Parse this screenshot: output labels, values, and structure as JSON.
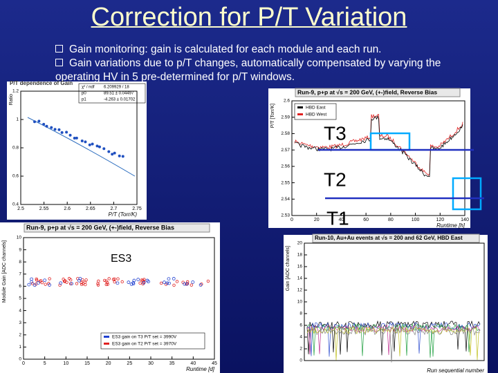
{
  "title": "Correction for P/T Variation",
  "bullets": [
    "Gain monitoring: gain is calculated for each module and each run.",
    "Gain variations due to p/T changes, automatically compensated  by varying the operating HV in 5 pre-determined for p/T windows."
  ],
  "panels": [
    {
      "title": "P/T dependence of Gain",
      "x_label": "P/T (Torr/K)",
      "y_label": "Ratio",
      "xticks": [
        "2.5",
        "2.55",
        "2.6",
        "2.65",
        "2.7",
        "2.75"
      ],
      "yticks": [
        "0.4",
        "0.6",
        "0.8",
        "1",
        "1.2"
      ],
      "stats": [
        [
          "χ² / ndf",
          "6.209929 / 18"
        ],
        [
          "p0",
          "89.51 ± 0.04497"
        ],
        [
          "p1",
          "-4.263 ± 0.01702"
        ]
      ]
    },
    {
      "title": "Run-9, p+p at √s = 200 GeV, (+-)field, Reverse Bias",
      "x_label": "Runtime [h]",
      "y_label": "P/T [Torr/K]",
      "xticks": [
        "0",
        "20",
        "40",
        "60",
        "80",
        "100",
        "120",
        "140"
      ],
      "yticks": [
        "2.53",
        "2.54",
        "2.55",
        "2.56",
        "2.57",
        "2.58",
        "2.59",
        "2.6"
      ],
      "legend": [
        "HBD East",
        "HBD West"
      ]
    },
    {
      "title": "Run-9, p+p at √s = 200 GeV, (+-)field, Reverse Bias",
      "x_label": "Runtime [d]",
      "y_label": "Module Gain [ADC channels]",
      "xticks": [
        "0",
        "5",
        "10",
        "15",
        "20",
        "25",
        "30",
        "35",
        "40",
        "45"
      ],
      "yticks": [
        "0",
        "1",
        "2",
        "3",
        "4",
        "5",
        "6",
        "7",
        "8",
        "9",
        "10"
      ],
      "legend": [
        "ES3 gain on T3 P/T set = 3990V",
        "ES3 gain on T2 P/T set = 3970V"
      ]
    },
    {
      "title": "Run-10, Au+Au events at √s = 200 and 62 GeV, HBD East",
      "x_label": "Run sequential number",
      "y_label": "Gain [ADC channels]",
      "xticks": [],
      "yticks": [
        "0",
        "2",
        "4",
        "6",
        "8",
        "10",
        "12",
        "14",
        "16",
        "18",
        "20"
      ]
    }
  ],
  "markers": {
    "t3": "T3",
    "t2": "T2",
    "t1": "T1",
    "es3": "ES3"
  }
}
